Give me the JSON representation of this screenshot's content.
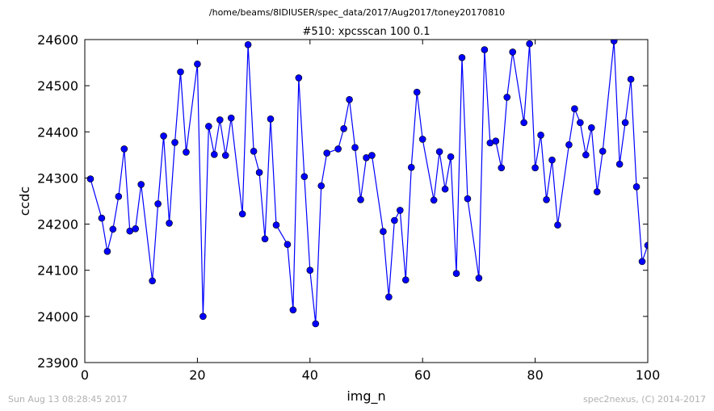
{
  "suptitle": "/home/beams/8IDIUSER/spec_data/2017/Aug2017/toney20170810",
  "footer": {
    "timestamp": "Sun Aug 13 08:28:45 2017",
    "credit": "spec2nexus, (C) 2014-2017"
  },
  "chart_data": {
    "type": "line",
    "title": "#510: xpcsscan 100 0.1",
    "xlabel": "img_n",
    "ylabel": "ccdc",
    "xlim": [
      0,
      100
    ],
    "ylim": [
      23900,
      24600
    ],
    "xticks": [
      0,
      20,
      40,
      60,
      80,
      100
    ],
    "yticks": [
      23900,
      24000,
      24100,
      24200,
      24300,
      24400,
      24500,
      24600
    ],
    "grid": false,
    "marker": "circle",
    "color": "#0000ff",
    "series": [
      {
        "x": [
          1,
          3,
          4,
          5,
          6,
          7,
          8,
          9,
          10,
          12,
          13,
          14,
          15,
          16,
          17,
          18,
          20,
          21,
          22,
          23,
          24,
          25,
          26,
          28,
          29,
          30,
          31,
          32,
          33,
          34,
          36,
          37,
          38,
          39,
          40,
          41,
          42,
          43,
          45,
          46,
          47,
          48,
          49,
          50,
          51,
          53,
          54,
          55,
          56,
          57,
          58,
          59,
          60,
          62,
          63,
          64,
          65,
          66,
          67,
          68,
          70,
          71,
          72,
          73,
          74,
          75,
          76,
          78,
          79,
          80,
          81,
          82,
          83,
          84,
          86,
          87,
          88,
          89,
          90,
          91,
          92,
          94,
          95,
          96,
          97,
          98,
          99,
          100
        ],
        "y": [
          24298,
          24213,
          24141,
          24189,
          24260,
          24363,
          24185,
          24190,
          24286,
          24077,
          24244,
          24391,
          24202,
          24377,
          24530,
          24356,
          24547,
          24000,
          24412,
          24351,
          24426,
          24349,
          24430,
          24222,
          24589,
          24358,
          24312,
          24168,
          24428,
          24198,
          24156,
          24014,
          24517,
          24303,
          24100,
          23984,
          24283,
          24354,
          24363,
          24407,
          24470,
          24366,
          24253,
          24344,
          24349,
          24184,
          24042,
          24208,
          24230,
          24079,
          24323,
          24486,
          24384,
          24252,
          24357,
          24276,
          24346,
          24093,
          24561,
          24255,
          24083,
          24578,
          24376,
          24380,
          24322,
          24475,
          24573,
          24420,
          24591,
          24322,
          24393,
          24253,
          24339,
          24198,
          24372,
          24450,
          24420,
          24350,
          24409,
          24270,
          24358,
          24597,
          24330,
          24420,
          24514,
          24281,
          24119,
          24154
        ]
      }
    ]
  }
}
